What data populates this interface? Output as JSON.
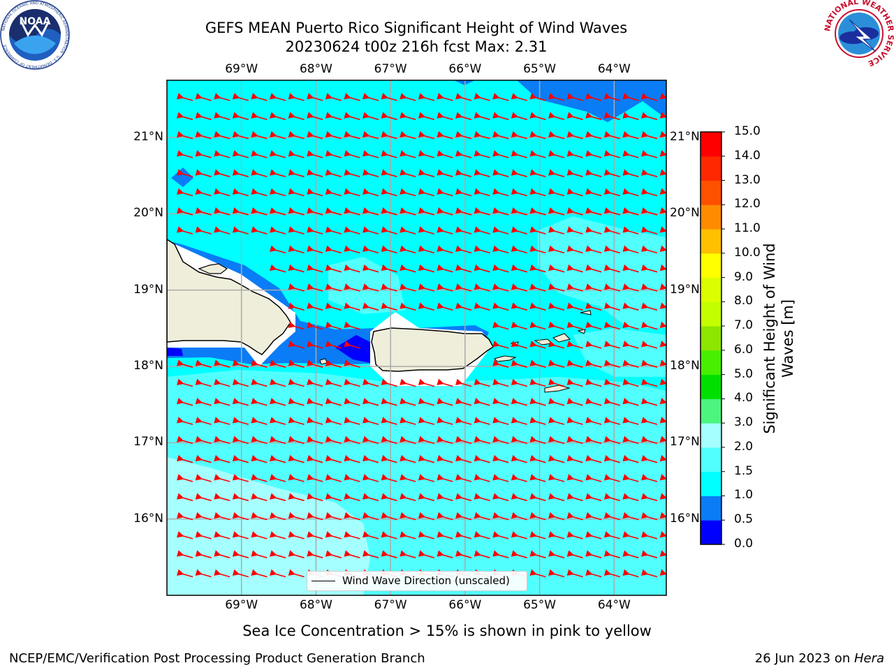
{
  "header": {
    "title_line1": "GEFS MEAN Puerto Rico Significant Height of Wind Waves",
    "title_line2": "20230624 t00z 216h fcst   Max: 2.31"
  },
  "logos": {
    "left": "NOAA",
    "left_ring": "NATIONAL OCEANIC AND ATMOSPHERIC ADMINISTRATION · U.S. DEPARTMENT OF COMMERCE",
    "right": "NATIONAL WEATHER SERVICE"
  },
  "map": {
    "lon_ticks": [
      "69°W",
      "68°W",
      "67°W",
      "66°W",
      "65°W",
      "64°W"
    ],
    "lat_ticks": [
      "21°N",
      "20°N",
      "19°N",
      "18°N",
      "17°N",
      "16°N"
    ],
    "lon_range": [
      -70.0,
      -63.3
    ],
    "lat_range": [
      15.0,
      21.75
    ],
    "arrow_color": "#ff0000",
    "land_color": "#efeedb"
  },
  "colorbar": {
    "label": "Significant Height of Wind Waves [m]",
    "ticks": [
      "0.0",
      "0.5",
      "1.0",
      "1.5",
      "2.0",
      "3.0",
      "4.0",
      "5.0",
      "6.0",
      "7.0",
      "8.0",
      "9.0",
      "10.0",
      "11.0",
      "12.0",
      "13.0",
      "14.0",
      "15.0"
    ],
    "colors": [
      "#0000ff",
      "#0a7cf5",
      "#00ffff",
      "#52ffff",
      "#a6ffff",
      "#4cf57e",
      "#00e000",
      "#48ef00",
      "#8ce600",
      "#c4ff00",
      "#dcff00",
      "#ffff00",
      "#ffc000",
      "#ff8c00",
      "#ff5000",
      "#ff2800",
      "#ff0000"
    ]
  },
  "legend": {
    "label": "Wind Wave Direction (unscaled)"
  },
  "subnote": "Sea Ice Concentration > 15% is shown in pink to yellow",
  "footer": {
    "left": "NCEP/EMC/Verification Post Processing Product Generation Branch",
    "right_date": "26 Jun 2023 on ",
    "right_host": "Hera"
  }
}
